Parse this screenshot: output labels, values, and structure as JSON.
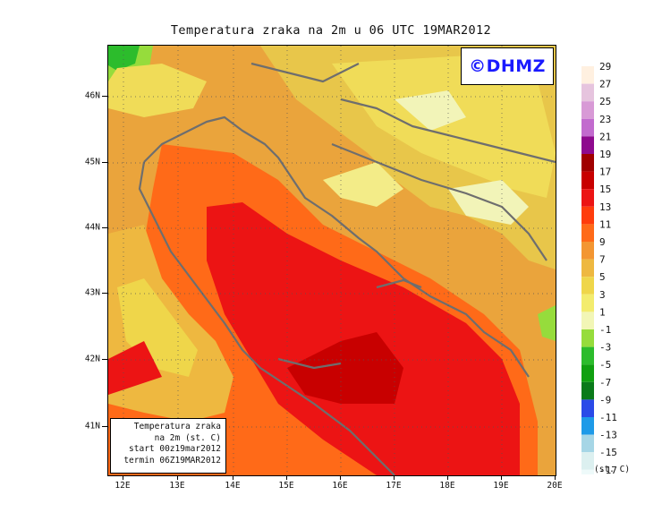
{
  "title": "Temperatura zraka na 2m u 06 UTC 19MAR2012",
  "logo": "©DHMZ",
  "info_box": {
    "line1": "Temperatura zraka",
    "line2": "na 2m (st. C)",
    "line3": "start 00z19mar2012",
    "line4": "termin 06Z19MAR2012"
  },
  "lat_labels": [
    "46N",
    "45N",
    "44N",
    "43N",
    "42N",
    "41N"
  ],
  "lon_labels": [
    "12E",
    "13E",
    "14E",
    "15E",
    "16E",
    "17E",
    "18E",
    "19E",
    "20E"
  ],
  "legend": {
    "unit": "(st. C)",
    "labels": [
      "29",
      "27",
      "25",
      "23",
      "21",
      "19",
      "17",
      "15",
      "13",
      "11",
      "9",
      "7",
      "5",
      "3",
      "1",
      "-1",
      "-3",
      "-5",
      "-7",
      "-9",
      "-11",
      "-13",
      "-15",
      "-17"
    ],
    "colors": [
      "#fff0e0",
      "#e6c4de",
      "#d89ad6",
      "#c26bce",
      "#8e0a8e",
      "#a00000",
      "#c80000",
      "#ec1414",
      "#ff3c0c",
      "#ff6a18",
      "#f39632",
      "#eeb840",
      "#efd64a",
      "#f3ec6e",
      "#f2f6b6",
      "#96dc3c",
      "#2cbc2c",
      "#10a010",
      "#0a7a1a",
      "#2a4ae8",
      "#1e9ae8",
      "#a6d6e6",
      "#dcf0f0",
      "#eefafa"
    ]
  },
  "colors": {
    "frame": "#000000",
    "coastline": "#6e6e6e",
    "logo_text": "#1a1aff"
  }
}
